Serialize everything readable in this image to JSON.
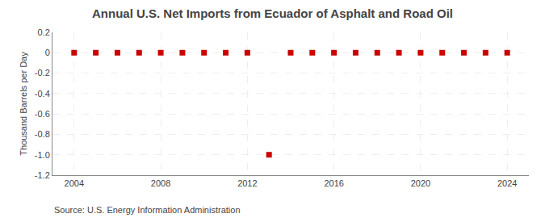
{
  "chart_data": {
    "type": "scatter",
    "title": "Annual U.S. Net Imports from Ecuador of Asphalt and Road Oil",
    "ylabel": "Thousand Barrels per Day",
    "annotations": [
      "Source: U.S. Energy Information Administration"
    ],
    "x": [
      2004,
      2005,
      2006,
      2007,
      2008,
      2009,
      2010,
      2011,
      2012,
      2013,
      2014,
      2015,
      2016,
      2017,
      2018,
      2019,
      2020,
      2021,
      2022,
      2023,
      2024
    ],
    "values": [
      0,
      0,
      0,
      0,
      0,
      0,
      0,
      0,
      0,
      -1.0,
      0,
      0,
      0,
      0,
      0,
      0,
      0,
      0,
      0,
      0,
      0
    ],
    "color": "#cc0000",
    "marker": "square",
    "xlim": [
      2003,
      2025
    ],
    "xticks": [
      2004,
      2008,
      2012,
      2016,
      2020,
      2024
    ],
    "ylim": [
      -1.2,
      0.2
    ],
    "yticks": [
      0.2,
      0,
      -0.2,
      -0.4,
      -0.6,
      -0.8,
      {
        "value": -1,
        "label": "-1.0"
      },
      -1.2
    ],
    "grid": true
  }
}
